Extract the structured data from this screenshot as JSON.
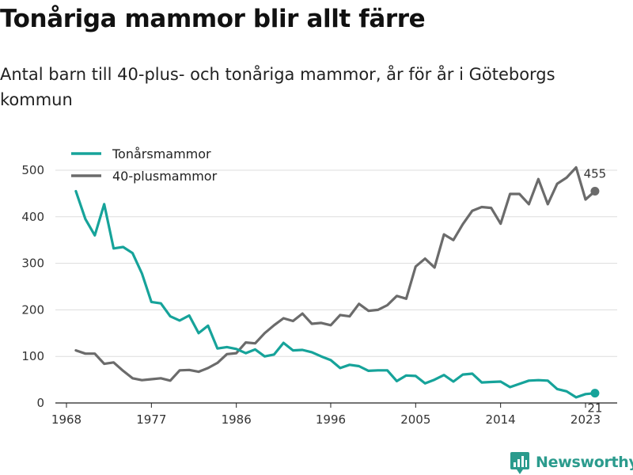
{
  "header": {
    "title": "Tonåriga mammor blir allt färre",
    "subtitle": "Antal barn till 40-plus- och tonåriga mammor, år för år i Göteborgs kommun"
  },
  "footer": {
    "brand": "Newsworthy"
  },
  "colors": {
    "teen": "#16a39a",
    "forty": "#6b6b6b",
    "grid": "#dddddd",
    "brand": "#2b9b8d"
  },
  "chart_data": {
    "type": "line",
    "title": "Tonåriga mammor blir allt färre",
    "subtitle": "Antal barn till 40-plus- och tonåriga mammor, år för år i Göteborgs kommun",
    "xlabel": "",
    "ylabel": "",
    "xlim": [
      1968,
      2024
    ],
    "ylim": [
      0,
      520
    ],
    "x_ticks": [
      "1968",
      "1977",
      "1986",
      "1996",
      "2005",
      "2014",
      "2023"
    ],
    "y_ticks": [
      "0",
      "100",
      "200",
      "300",
      "400",
      "500"
    ],
    "grid": true,
    "legend_position": "top-left",
    "x": [
      1969,
      1970,
      1971,
      1972,
      1973,
      1974,
      1975,
      1976,
      1977,
      1978,
      1979,
      1980,
      1981,
      1982,
      1983,
      1984,
      1985,
      1986,
      1987,
      1988,
      1989,
      1990,
      1991,
      1992,
      1993,
      1994,
      1995,
      1996,
      1997,
      1998,
      1999,
      2000,
      2001,
      2002,
      2003,
      2004,
      2005,
      2006,
      2007,
      2008,
      2009,
      2010,
      2011,
      2012,
      2013,
      2014,
      2015,
      2016,
      2017,
      2018,
      2019,
      2020,
      2021,
      2022,
      2023,
      2024
    ],
    "series": [
      {
        "name": "Tonårsmammor",
        "color": "#16a39a",
        "values": [
          455,
          395,
          360,
          427,
          332,
          335,
          322,
          278,
          217,
          214,
          186,
          177,
          188,
          150,
          166,
          117,
          120,
          116,
          107,
          115,
          100,
          104,
          129,
          113,
          114,
          109,
          100,
          92,
          75,
          82,
          79,
          69,
          70,
          70,
          47,
          59,
          58,
          42,
          50,
          60,
          46,
          61,
          63,
          44,
          45,
          46,
          34,
          41,
          48,
          49,
          48,
          30,
          25,
          12,
          19,
          21
        ],
        "end_label": "21"
      },
      {
        "name": "40-plusmammor",
        "color": "#6b6b6b",
        "values": [
          113,
          106,
          106,
          84,
          87,
          69,
          53,
          49,
          51,
          53,
          48,
          70,
          71,
          67,
          75,
          86,
          105,
          107,
          130,
          128,
          150,
          167,
          182,
          176,
          192,
          170,
          172,
          167,
          189,
          186,
          213,
          198,
          200,
          210,
          230,
          224,
          293,
          310,
          291,
          362,
          350,
          384,
          413,
          421,
          419,
          385,
          449,
          449,
          427,
          481,
          427,
          471,
          484,
          506,
          437,
          455
        ],
        "end_label": "455"
      }
    ]
  }
}
